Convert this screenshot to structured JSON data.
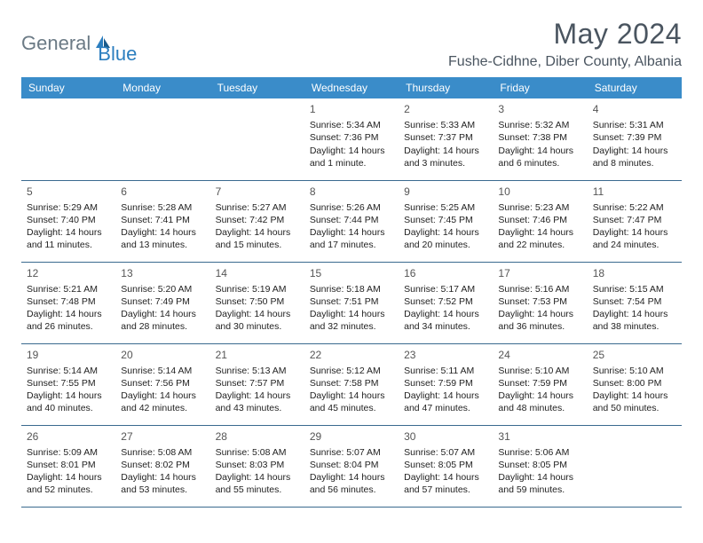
{
  "brand": {
    "part1": "General",
    "part2": "Blue"
  },
  "title": "May 2024",
  "location": "Fushe-Cidhne, Diber County, Albania",
  "colors": {
    "header_bg": "#3a8cc9",
    "header_text": "#ffffff",
    "title_text": "#4a5560",
    "brand_gray": "#6b7a85",
    "brand_blue": "#2b7ebf",
    "row_border": "#3a6a8f"
  },
  "daysOfWeek": [
    "Sunday",
    "Monday",
    "Tuesday",
    "Wednesday",
    "Thursday",
    "Friday",
    "Saturday"
  ],
  "weeks": [
    [
      null,
      null,
      null,
      {
        "num": "1",
        "sunrise": "Sunrise: 5:34 AM",
        "sunset": "Sunset: 7:36 PM",
        "daylight": "Daylight: 14 hours and 1 minute."
      },
      {
        "num": "2",
        "sunrise": "Sunrise: 5:33 AM",
        "sunset": "Sunset: 7:37 PM",
        "daylight": "Daylight: 14 hours and 3 minutes."
      },
      {
        "num": "3",
        "sunrise": "Sunrise: 5:32 AM",
        "sunset": "Sunset: 7:38 PM",
        "daylight": "Daylight: 14 hours and 6 minutes."
      },
      {
        "num": "4",
        "sunrise": "Sunrise: 5:31 AM",
        "sunset": "Sunset: 7:39 PM",
        "daylight": "Daylight: 14 hours and 8 minutes."
      }
    ],
    [
      {
        "num": "5",
        "sunrise": "Sunrise: 5:29 AM",
        "sunset": "Sunset: 7:40 PM",
        "daylight": "Daylight: 14 hours and 11 minutes."
      },
      {
        "num": "6",
        "sunrise": "Sunrise: 5:28 AM",
        "sunset": "Sunset: 7:41 PM",
        "daylight": "Daylight: 14 hours and 13 minutes."
      },
      {
        "num": "7",
        "sunrise": "Sunrise: 5:27 AM",
        "sunset": "Sunset: 7:42 PM",
        "daylight": "Daylight: 14 hours and 15 minutes."
      },
      {
        "num": "8",
        "sunrise": "Sunrise: 5:26 AM",
        "sunset": "Sunset: 7:44 PM",
        "daylight": "Daylight: 14 hours and 17 minutes."
      },
      {
        "num": "9",
        "sunrise": "Sunrise: 5:25 AM",
        "sunset": "Sunset: 7:45 PM",
        "daylight": "Daylight: 14 hours and 20 minutes."
      },
      {
        "num": "10",
        "sunrise": "Sunrise: 5:23 AM",
        "sunset": "Sunset: 7:46 PM",
        "daylight": "Daylight: 14 hours and 22 minutes."
      },
      {
        "num": "11",
        "sunrise": "Sunrise: 5:22 AM",
        "sunset": "Sunset: 7:47 PM",
        "daylight": "Daylight: 14 hours and 24 minutes."
      }
    ],
    [
      {
        "num": "12",
        "sunrise": "Sunrise: 5:21 AM",
        "sunset": "Sunset: 7:48 PM",
        "daylight": "Daylight: 14 hours and 26 minutes."
      },
      {
        "num": "13",
        "sunrise": "Sunrise: 5:20 AM",
        "sunset": "Sunset: 7:49 PM",
        "daylight": "Daylight: 14 hours and 28 minutes."
      },
      {
        "num": "14",
        "sunrise": "Sunrise: 5:19 AM",
        "sunset": "Sunset: 7:50 PM",
        "daylight": "Daylight: 14 hours and 30 minutes."
      },
      {
        "num": "15",
        "sunrise": "Sunrise: 5:18 AM",
        "sunset": "Sunset: 7:51 PM",
        "daylight": "Daylight: 14 hours and 32 minutes."
      },
      {
        "num": "16",
        "sunrise": "Sunrise: 5:17 AM",
        "sunset": "Sunset: 7:52 PM",
        "daylight": "Daylight: 14 hours and 34 minutes."
      },
      {
        "num": "17",
        "sunrise": "Sunrise: 5:16 AM",
        "sunset": "Sunset: 7:53 PM",
        "daylight": "Daylight: 14 hours and 36 minutes."
      },
      {
        "num": "18",
        "sunrise": "Sunrise: 5:15 AM",
        "sunset": "Sunset: 7:54 PM",
        "daylight": "Daylight: 14 hours and 38 minutes."
      }
    ],
    [
      {
        "num": "19",
        "sunrise": "Sunrise: 5:14 AM",
        "sunset": "Sunset: 7:55 PM",
        "daylight": "Daylight: 14 hours and 40 minutes."
      },
      {
        "num": "20",
        "sunrise": "Sunrise: 5:14 AM",
        "sunset": "Sunset: 7:56 PM",
        "daylight": "Daylight: 14 hours and 42 minutes."
      },
      {
        "num": "21",
        "sunrise": "Sunrise: 5:13 AM",
        "sunset": "Sunset: 7:57 PM",
        "daylight": "Daylight: 14 hours and 43 minutes."
      },
      {
        "num": "22",
        "sunrise": "Sunrise: 5:12 AM",
        "sunset": "Sunset: 7:58 PM",
        "daylight": "Daylight: 14 hours and 45 minutes."
      },
      {
        "num": "23",
        "sunrise": "Sunrise: 5:11 AM",
        "sunset": "Sunset: 7:59 PM",
        "daylight": "Daylight: 14 hours and 47 minutes."
      },
      {
        "num": "24",
        "sunrise": "Sunrise: 5:10 AM",
        "sunset": "Sunset: 7:59 PM",
        "daylight": "Daylight: 14 hours and 48 minutes."
      },
      {
        "num": "25",
        "sunrise": "Sunrise: 5:10 AM",
        "sunset": "Sunset: 8:00 PM",
        "daylight": "Daylight: 14 hours and 50 minutes."
      }
    ],
    [
      {
        "num": "26",
        "sunrise": "Sunrise: 5:09 AM",
        "sunset": "Sunset: 8:01 PM",
        "daylight": "Daylight: 14 hours and 52 minutes."
      },
      {
        "num": "27",
        "sunrise": "Sunrise: 5:08 AM",
        "sunset": "Sunset: 8:02 PM",
        "daylight": "Daylight: 14 hours and 53 minutes."
      },
      {
        "num": "28",
        "sunrise": "Sunrise: 5:08 AM",
        "sunset": "Sunset: 8:03 PM",
        "daylight": "Daylight: 14 hours and 55 minutes."
      },
      {
        "num": "29",
        "sunrise": "Sunrise: 5:07 AM",
        "sunset": "Sunset: 8:04 PM",
        "daylight": "Daylight: 14 hours and 56 minutes."
      },
      {
        "num": "30",
        "sunrise": "Sunrise: 5:07 AM",
        "sunset": "Sunset: 8:05 PM",
        "daylight": "Daylight: 14 hours and 57 minutes."
      },
      {
        "num": "31",
        "sunrise": "Sunrise: 5:06 AM",
        "sunset": "Sunset: 8:05 PM",
        "daylight": "Daylight: 14 hours and 59 minutes."
      },
      null
    ]
  ]
}
